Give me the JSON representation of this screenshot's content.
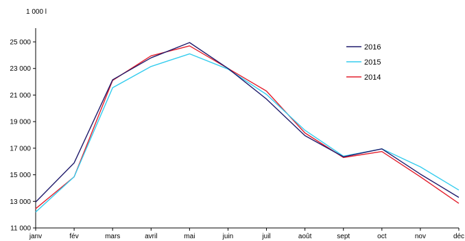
{
  "chart_data": {
    "type": "line",
    "unit_label": "1 000 l",
    "categories": [
      "janv",
      "fév",
      "mars",
      "avril",
      "mai",
      "juin",
      "juil",
      "août",
      "sept",
      "oct",
      "nov",
      "déc"
    ],
    "series": [
      {
        "name": "2016",
        "color": "#1f1a6b",
        "values": [
          12950,
          15900,
          22150,
          23800,
          24950,
          23000,
          20700,
          17950,
          16350,
          16950,
          15050,
          13300
        ]
      },
      {
        "name": "2015",
        "color": "#33ccee",
        "values": [
          12200,
          14850,
          21550,
          23150,
          24100,
          22950,
          21050,
          18350,
          16400,
          16950,
          15600,
          13850
        ]
      },
      {
        "name": "2014",
        "color": "#e31e2c",
        "values": [
          12450,
          14850,
          22100,
          23950,
          24700,
          23000,
          21300,
          18150,
          16300,
          16750,
          14850,
          12850
        ]
      }
    ],
    "ylim": [
      11000,
      25000
    ],
    "yticks": [
      11000,
      13000,
      15000,
      17000,
      19000,
      21000,
      23000,
      25000
    ],
    "ytick_labels": [
      "11 000",
      "13 000",
      "15 000",
      "17 000",
      "19 000",
      "21 000",
      "23 000",
      "25 000"
    ],
    "legend_position": "top-right",
    "grid": false
  }
}
